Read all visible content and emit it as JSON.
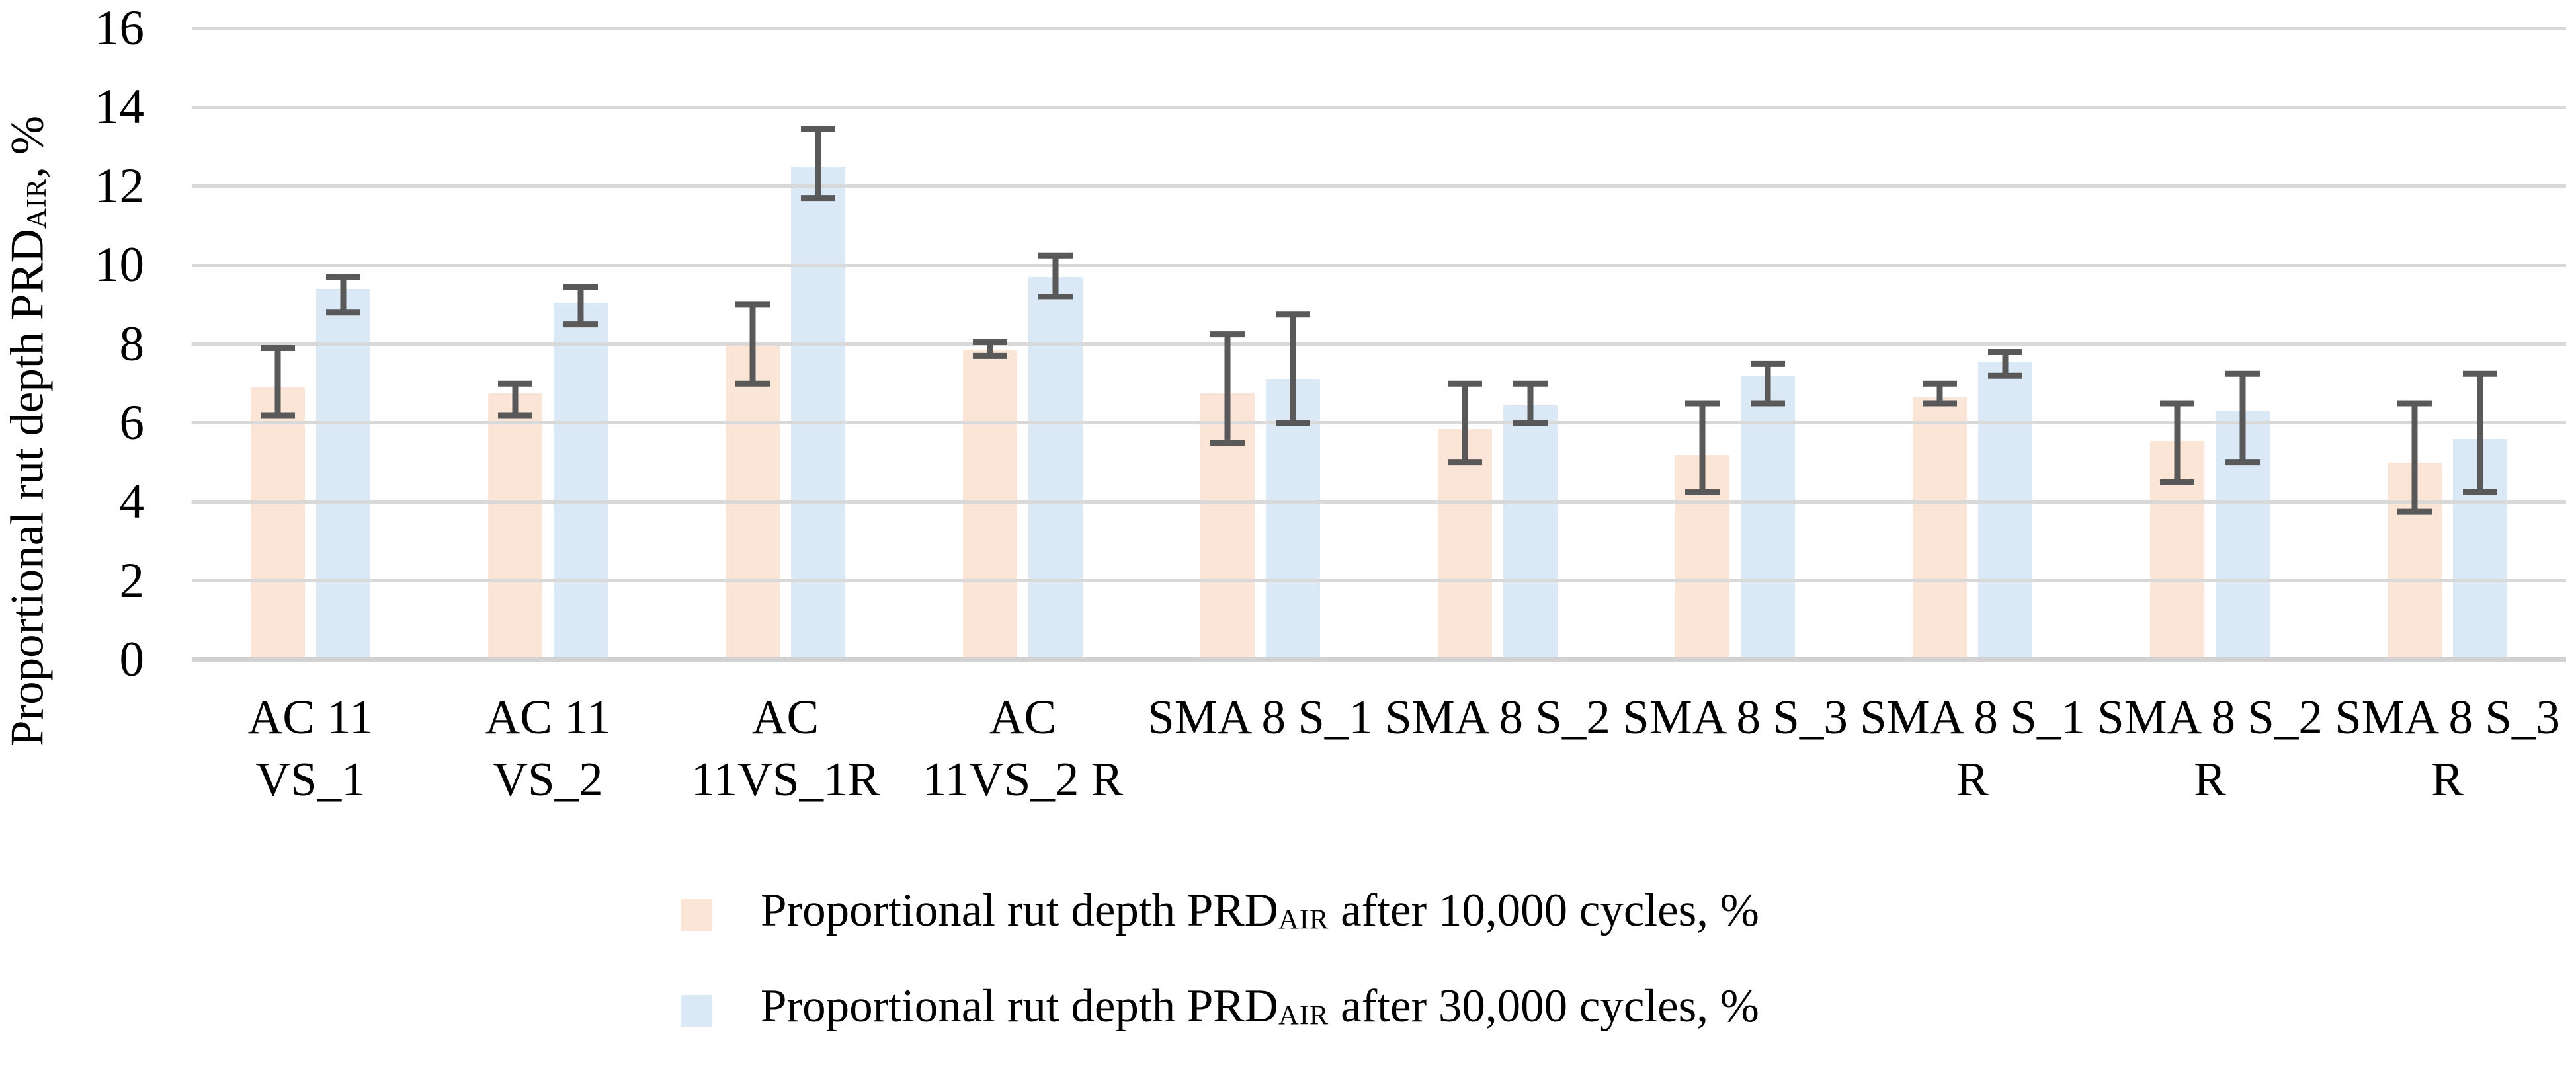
{
  "chart_data": {
    "type": "bar",
    "title": "",
    "xlabel": "",
    "ylabel": {
      "pre": "Proportional rut depth PRD",
      "sub": "AIR",
      "post": ", %"
    },
    "ylim": [
      0,
      16
    ],
    "yticks": [
      0,
      2,
      4,
      6,
      8,
      10,
      12,
      14,
      16
    ],
    "grid": "horizontal-on",
    "legend_position": "bottom",
    "categories": [
      {
        "line1": "AC 11",
        "line2": "VS_1"
      },
      {
        "line1": "AC 11",
        "line2": "VS_2"
      },
      {
        "line1": "AC",
        "line2": "11VS_1R"
      },
      {
        "line1": "AC",
        "line2": "11VS_2 R"
      },
      {
        "line1": "SMA 8 S_1",
        "line2": ""
      },
      {
        "line1": "SMA 8 S_2",
        "line2": ""
      },
      {
        "line1": "SMA 8 S_3",
        "line2": ""
      },
      {
        "line1": "SMA 8 S_1",
        "line2": "R"
      },
      {
        "line1": "SMA 8 S_2",
        "line2": "R"
      },
      {
        "line1": "SMA 8 S_3",
        "line2": "R"
      }
    ],
    "series": [
      {
        "name": "Proportional rut depth PRDAIR after 10,000 cycles, %",
        "label": {
          "pre": "Proportional rut depth PRD",
          "sub": "AIR",
          "post": " after 10,000 cycles, %"
        },
        "color": "#fbe5d6",
        "values": [
          6.9,
          6.75,
          8.0,
          7.85,
          6.75,
          5.85,
          5.2,
          6.65,
          5.55,
          5.0
        ],
        "error_low": [
          6.2,
          6.2,
          7.0,
          7.7,
          5.5,
          5.0,
          4.25,
          6.5,
          4.5,
          3.75
        ],
        "error_high": [
          7.9,
          7.0,
          9.0,
          8.05,
          8.25,
          7.0,
          6.5,
          7.0,
          6.5,
          6.5
        ]
      },
      {
        "name": "Proportional rut depth PRDAIR after 30,000 cycles, %",
        "label": {
          "pre": "Proportional rut depth PRD",
          "sub": "AIR",
          "post": " after 30,000 cycles, %"
        },
        "color": "#dbe9f6",
        "values": [
          9.4,
          9.05,
          12.5,
          9.7,
          7.1,
          6.45,
          7.2,
          7.55,
          6.3,
          5.6
        ],
        "error_low": [
          8.8,
          8.5,
          11.7,
          9.2,
          6.0,
          6.0,
          6.5,
          7.2,
          5.0,
          4.25
        ],
        "error_high": [
          9.7,
          9.45,
          13.45,
          10.25,
          8.75,
          7.0,
          7.5,
          7.8,
          7.25,
          7.25
        ]
      }
    ],
    "colors": {
      "background": "#ffffff",
      "gridline": "#d9d9d9",
      "axis_line": "#d2d2d2",
      "error_bar": "#595959",
      "text": "#000000"
    }
  }
}
